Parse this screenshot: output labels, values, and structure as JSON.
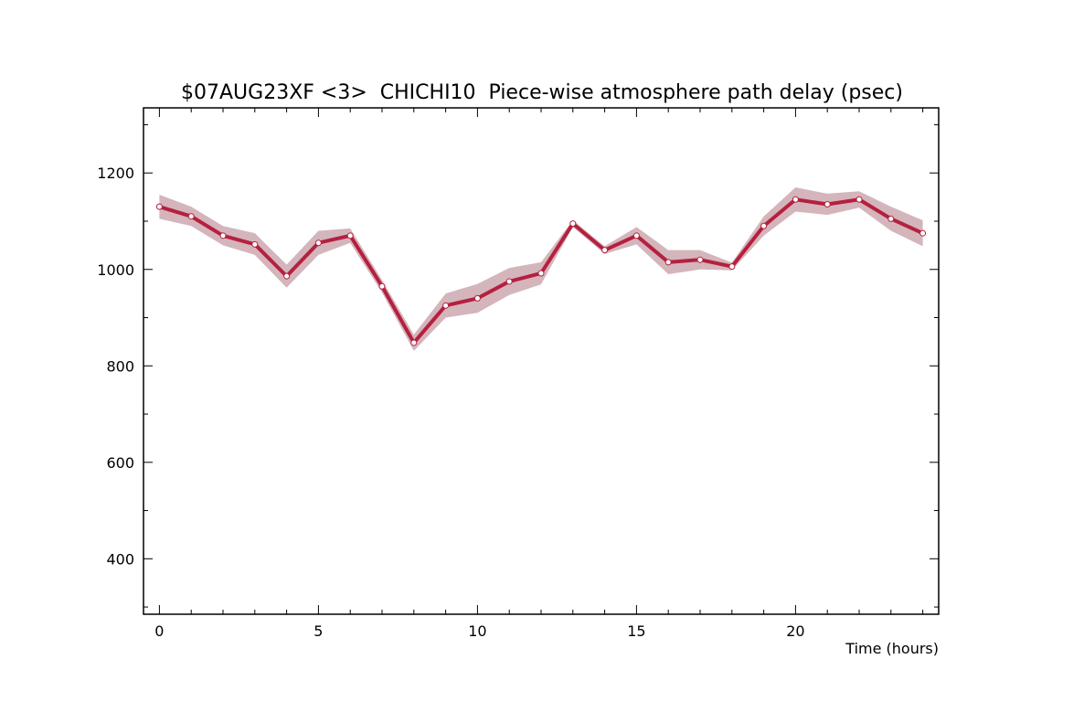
{
  "chart_data": {
    "type": "line",
    "title": "$07AUG23XF <3>  CHICHI10  Piece-wise atmosphere path delay (psec)",
    "xlabel": "Time (hours)",
    "ylabel": "",
    "xlim": [
      -0.5,
      24.5
    ],
    "ylim": [
      285,
      1335
    ],
    "x_ticks": [
      0,
      5,
      10,
      15,
      20
    ],
    "y_ticks": [
      400,
      600,
      800,
      1000,
      1200
    ],
    "x_minor_step": 1,
    "y_minor_step": 100,
    "grid": false,
    "colors": {
      "line": "#b5203f",
      "marker_fill": "#ffffff",
      "band": "#d4b5bb"
    },
    "series": [
      {
        "x": [
          0,
          1,
          2,
          3,
          4,
          5,
          6,
          7,
          8,
          9,
          10,
          11,
          12,
          13,
          14,
          15,
          16,
          17,
          18,
          19,
          20,
          21,
          22,
          23,
          24
        ],
        "values": [
          1130,
          1110,
          1070,
          1052,
          986,
          1055,
          1070,
          965,
          848,
          925,
          940,
          975,
          992,
          1095,
          1040,
          1070,
          1015,
          1020,
          1006,
          1090,
          1145,
          1135,
          1145,
          1105,
          1075
        ],
        "upper": [
          1155,
          1130,
          1090,
          1075,
          1010,
          1080,
          1085,
          978,
          865,
          950,
          970,
          1003,
          1015,
          1102,
          1048,
          1088,
          1040,
          1040,
          1014,
          1110,
          1170,
          1157,
          1162,
          1130,
          1102
        ],
        "lower": [
          1105,
          1090,
          1050,
          1030,
          962,
          1030,
          1055,
          952,
          831,
          900,
          910,
          947,
          969,
          1088,
          1032,
          1052,
          990,
          1000,
          998,
          1070,
          1120,
          1113,
          1128,
          1080,
          1048
        ]
      }
    ]
  }
}
